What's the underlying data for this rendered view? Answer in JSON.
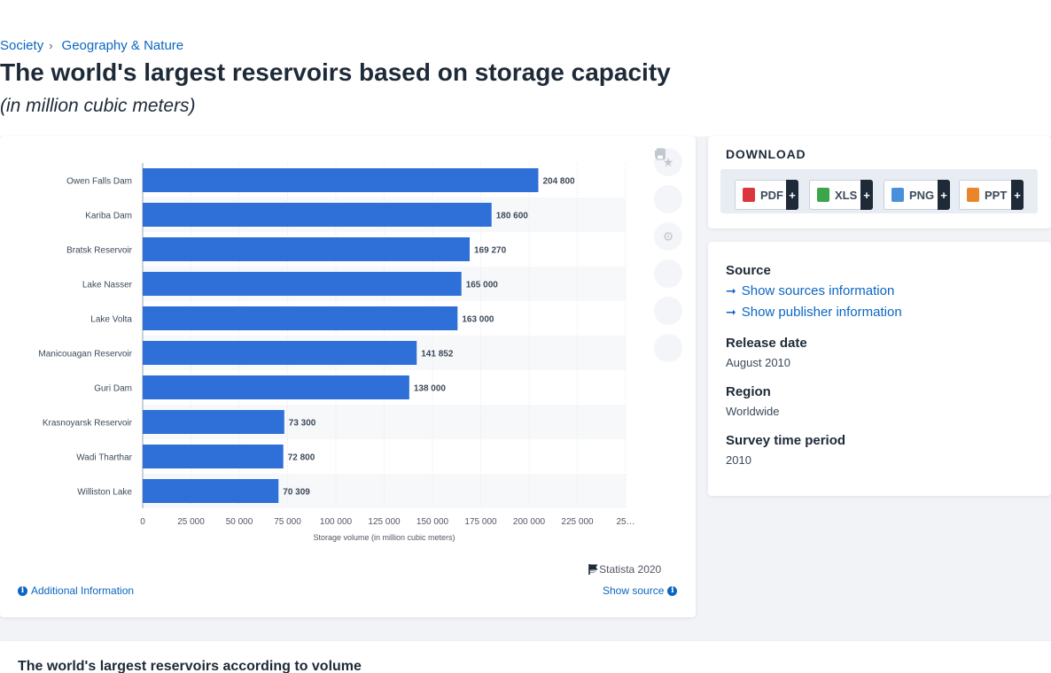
{
  "breadcrumb": {
    "items": [
      "Society",
      "Geography & Nature"
    ],
    "separator": "›"
  },
  "page": {
    "title": "The world's largest reservoirs based on storage capacity",
    "subtitle": "(in million cubic meters)"
  },
  "chart_data": {
    "type": "bar",
    "orientation": "horizontal",
    "categories": [
      "Owen Falls Dam",
      "Kariba Dam",
      "Bratsk Reservoir",
      "Lake Nasser",
      "Lake Volta",
      "Manicouagan Reservoir",
      "Guri Dam",
      "Krasnoyarsk Reservoir",
      "Wadi Tharthar",
      "Williston Lake"
    ],
    "values": [
      204800,
      180600,
      169270,
      165000,
      163000,
      141852,
      138000,
      73300,
      72800,
      70309
    ],
    "value_labels": [
      "204 800",
      "180 600",
      "169 270",
      "165 000",
      "163 000",
      "141 852",
      "138 000",
      "73 300",
      "72 800",
      "70 309"
    ],
    "xlabel": "Storage volume (in million cubic meters)",
    "x_ticks": [
      "0",
      "25 000",
      "50 000",
      "75 000",
      "100 000",
      "125 000",
      "150 000",
      "175 000",
      "200 000",
      "225 000",
      "25…"
    ],
    "xlim": [
      0,
      250000
    ],
    "grid": true,
    "bar_color": "#2f6fd8"
  },
  "chart_footer": {
    "copyright": "© Statista 2020",
    "additional_info": "Additional Information",
    "show_source": "Show source"
  },
  "tools": [
    "star-icon",
    "bell-icon",
    "gear-icon",
    "share-icon",
    "quote-icon",
    "print-icon"
  ],
  "download": {
    "title": "DOWNLOAD",
    "buttons": [
      {
        "label": "PDF",
        "color": "#d9363e"
      },
      {
        "label": "XLS",
        "color": "#3aa54a"
      },
      {
        "label": "PNG",
        "color": "#4a8fd9"
      },
      {
        "label": "PPT",
        "color": "#e9862b"
      }
    ],
    "plus": "+"
  },
  "meta": {
    "source_heading": "Source",
    "show_sources": "Show sources information",
    "show_publisher": "Show publisher information",
    "release_heading": "Release date",
    "release_value": "August 2010",
    "region_heading": "Region",
    "region_value": "Worldwide",
    "period_heading": "Survey time period",
    "period_value": "2010"
  },
  "related": {
    "title": "The world's largest reservoirs according to volume"
  }
}
